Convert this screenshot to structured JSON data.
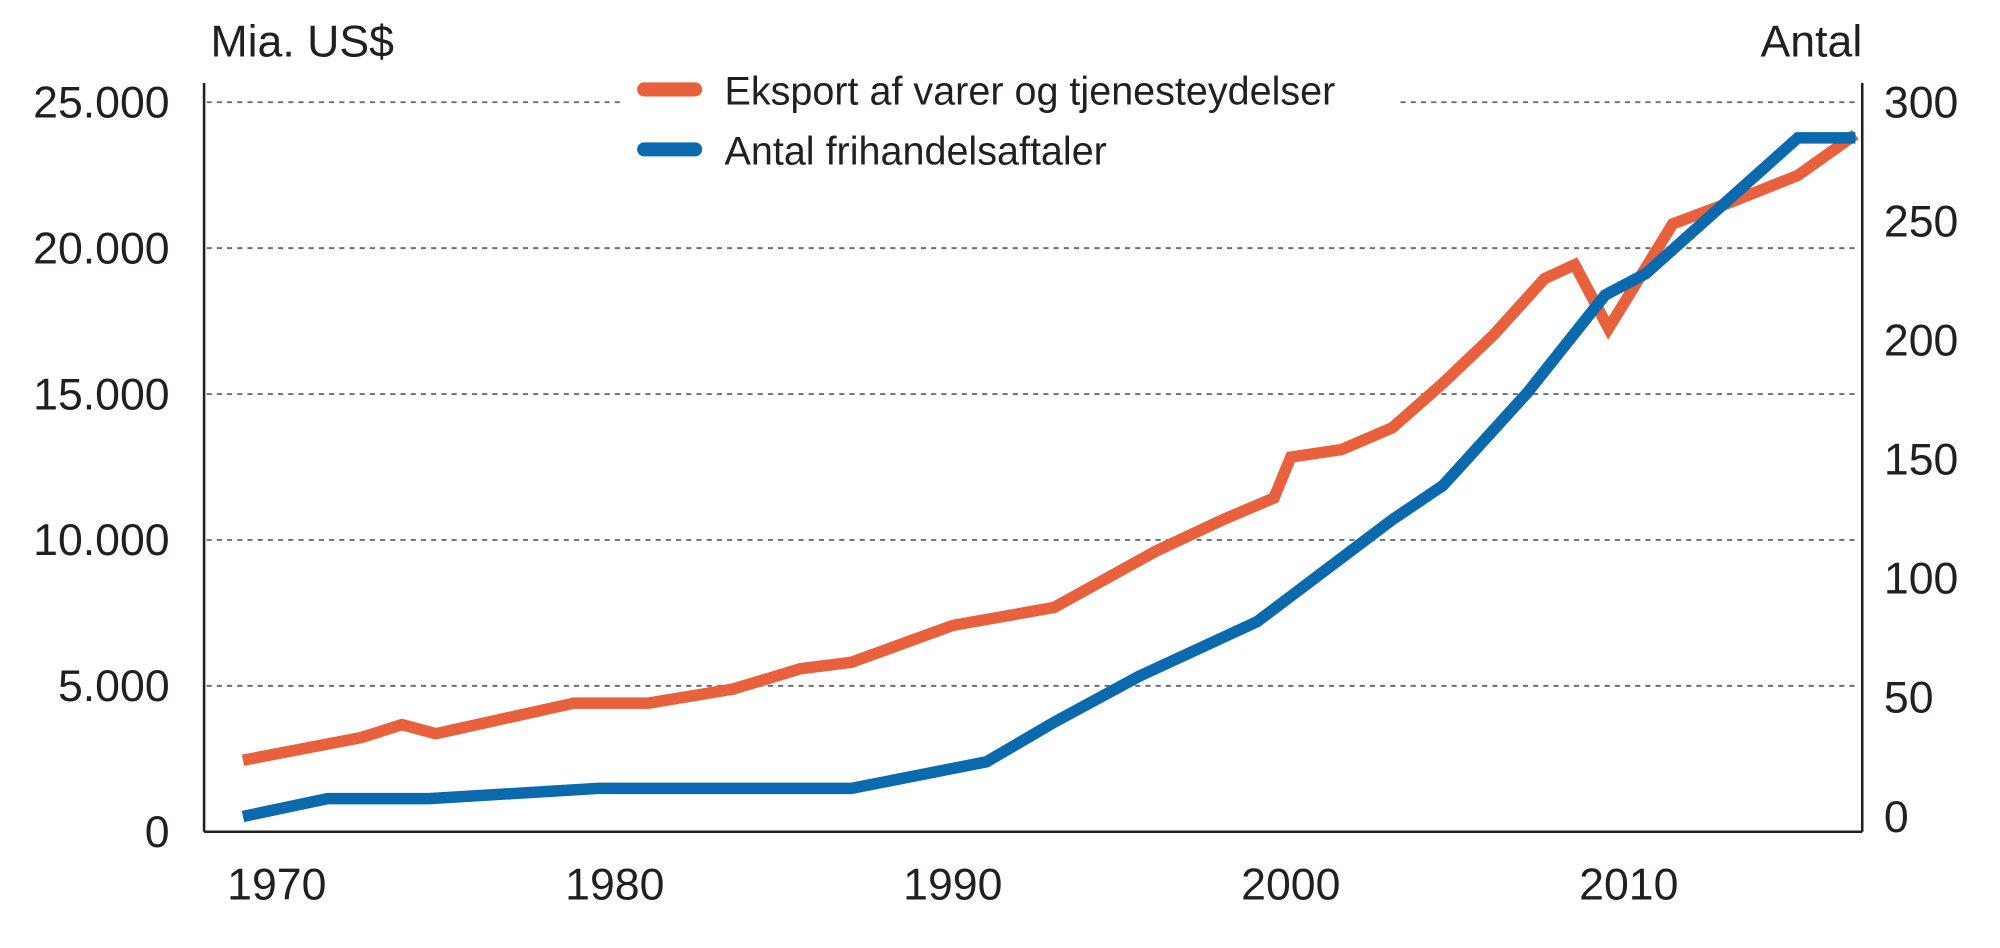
{
  "chart_data": {
    "type": "line",
    "title": "",
    "left_axis": {
      "label": "Mia. US$",
      "range": [
        0,
        25000
      ],
      "ticks": [
        "0",
        "5.000",
        "10.000",
        "15.000",
        "20.000",
        "25.000"
      ],
      "tick_values": [
        0,
        5000,
        10000,
        15000,
        20000,
        25000
      ]
    },
    "right_axis": {
      "label": "Antal",
      "range": [
        0,
        300
      ],
      "ticks": [
        "0",
        "50",
        "100",
        "150",
        "200",
        "250",
        "300"
      ],
      "tick_values": [
        0,
        50,
        100,
        150,
        200,
        250,
        300
      ]
    },
    "x_axis": {
      "ticks": [
        "1970",
        "1980",
        "1990",
        "2000",
        "2010"
      ],
      "tick_values": [
        1970,
        1980,
        1990,
        2000,
        2010
      ]
    },
    "grid": true,
    "legend_position": "top-center",
    "series": [
      {
        "name": "Eksport af varer og tjenesteydelser",
        "axis": "left",
        "color": "#e8603c",
        "points": [
          [
            1969,
            2450
          ],
          [
            1972.5,
            3230
          ],
          [
            1973.7,
            3670
          ],
          [
            1974.7,
            3360
          ],
          [
            1978.8,
            4410
          ],
          [
            1981,
            4410
          ],
          [
            1983.5,
            4890
          ],
          [
            1985.5,
            5590
          ],
          [
            1987,
            5810
          ],
          [
            1990,
            7070
          ],
          [
            1993,
            7690
          ],
          [
            1996,
            9610
          ],
          [
            1998,
            10700
          ],
          [
            1999.5,
            11440
          ],
          [
            2000,
            12840
          ],
          [
            2001.5,
            13100
          ],
          [
            2003,
            13840
          ],
          [
            2004.5,
            15370
          ],
          [
            2006,
            17030
          ],
          [
            2007.5,
            18950
          ],
          [
            2008.4,
            19430
          ],
          [
            2009.4,
            17250
          ],
          [
            2011.3,
            20830
          ],
          [
            2013,
            21570
          ],
          [
            2015,
            22490
          ],
          [
            2016.7,
            23890
          ]
        ]
      },
      {
        "name": "Antal frihandelsaftaler",
        "axis": "right",
        "color": "#0a6aad",
        "points": [
          [
            1969,
            0
          ],
          [
            1971.5,
            7.5
          ],
          [
            1974.5,
            7.5
          ],
          [
            1979.5,
            11.8
          ],
          [
            1987,
            11.8
          ],
          [
            1991,
            23
          ],
          [
            1993,
            39.6
          ],
          [
            1995.5,
            58.8
          ],
          [
            1999,
            81.8
          ],
          [
            2003,
            124.6
          ],
          [
            2004.5,
            139
          ],
          [
            2007,
            178
          ],
          [
            2009.3,
            219
          ],
          [
            2010.5,
            228
          ],
          [
            2015,
            285
          ],
          [
            2016.7,
            285
          ]
        ]
      }
    ]
  }
}
